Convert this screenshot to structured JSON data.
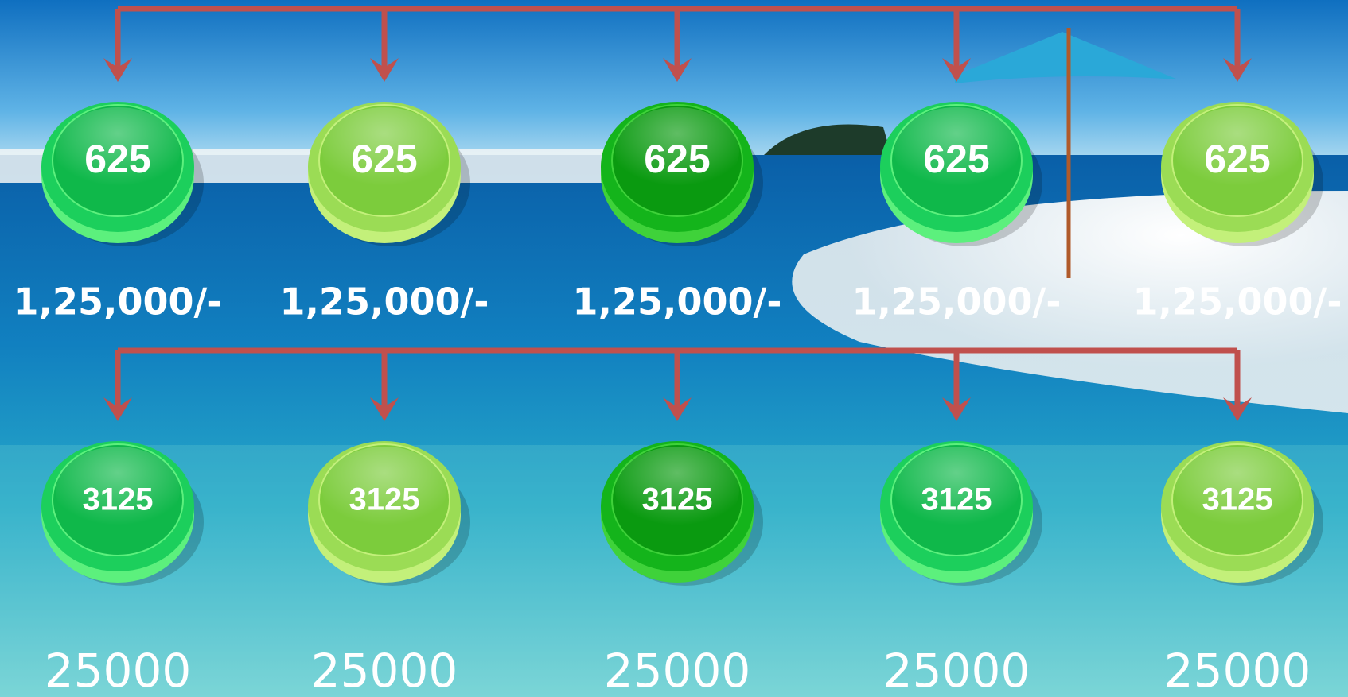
{
  "rows": [
    {
      "nodes": [
        {
          "value": "625",
          "label": "1,25,000/-"
        },
        {
          "value": "625",
          "label": "1,25,000/-"
        },
        {
          "value": "625",
          "label": "1,25,000/-"
        },
        {
          "value": "625",
          "label": "1,25,000/-"
        },
        {
          "value": "625",
          "label": "1,25,000/-"
        }
      ]
    },
    {
      "nodes": [
        {
          "value": "3125",
          "label": "25000"
        },
        {
          "value": "3125",
          "label": "25000"
        },
        {
          "value": "3125",
          "label": "25000"
        },
        {
          "value": "3125",
          "label": "25000"
        },
        {
          "value": "3125",
          "label": "25000"
        }
      ]
    }
  ]
}
